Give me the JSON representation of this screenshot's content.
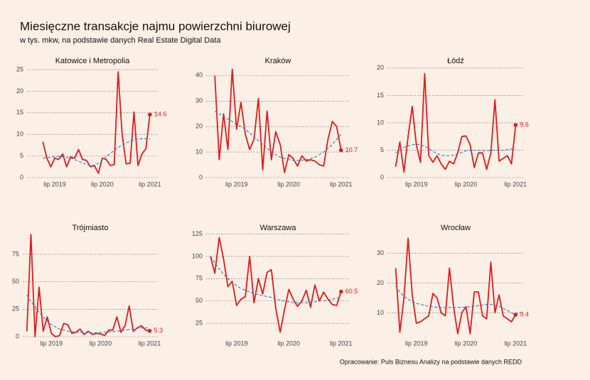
{
  "title": "Miesięczne transakcje najmu powierzchni biurowej",
  "subtitle": "w tys. mkw, na podstawie danych Real Estate Digital Data",
  "source": "Opracowanie: Puls Biznesu Analizy na podstawie danych REDD",
  "chart_data": [
    {
      "type": "line",
      "title": "Katowice i Metropolia",
      "start": "2019-04",
      "xlim": [
        "2018-12",
        "2021-09"
      ],
      "xticks": [
        {
          "value": "2019-07",
          "label": "lip 2019"
        },
        {
          "value": "2020-07",
          "label": "lip 2020"
        },
        {
          "value": "2021-07",
          "label": "lip 2021"
        }
      ],
      "ylim": [
        0,
        26
      ],
      "yticks": [
        0,
        5,
        10,
        15,
        20,
        25
      ],
      "grid": true,
      "series": [
        {
          "color": "#e01b1b",
          "values": [
            8.3,
            4.5,
            2.5,
            4.5,
            4.2,
            5.5,
            2.5,
            4.8,
            4.5,
            6.5,
            4.2,
            4,
            2.5,
            2.8,
            1,
            4.5,
            4.2,
            2.8,
            3,
            24.5,
            10,
            3.2,
            3.3,
            15.2,
            2.8,
            5.5,
            6.7,
            14.6
          ]
        },
        {
          "color": "#2b7bba",
          "dashed": true,
          "values": [
            4.5,
            4.6,
            4.7,
            4.8,
            4.9,
            4.8,
            4.7,
            4.5,
            4.2,
            3.8,
            3.4,
            3,
            2.8,
            2.9,
            3.3,
            4,
            4.8,
            5.6,
            6.3,
            7,
            7.5,
            8,
            8.4,
            8.7,
            8.9,
            9,
            9,
            9
          ]
        }
      ]
    },
    {
      "type": "line",
      "title": "Kraków",
      "start": "2019-02",
      "xlim": [
        "2018-12",
        "2021-09"
      ],
      "xticks": [
        {
          "value": "2019-07",
          "label": "lip 2019"
        },
        {
          "value": "2020-07",
          "label": "lip 2020"
        },
        {
          "value": "2021-07",
          "label": "lip 2021"
        }
      ],
      "ylim": [
        0,
        44
      ],
      "yticks": [
        0,
        10,
        20,
        30,
        40
      ],
      "grid": true,
      "series": [
        {
          "color": "#e01b1b",
          "values": [
            40,
            7,
            25,
            11,
            42.5,
            19,
            29.5,
            17,
            11,
            15,
            31,
            3,
            26,
            7,
            18,
            13,
            2,
            9,
            7.5,
            4.5,
            8.5,
            6.5,
            7,
            6.5,
            5,
            4.5,
            15,
            22,
            20,
            10.7
          ]
        },
        {
          "color": "#2b7bba",
          "dashed": true,
          "values": [
            26,
            25,
            24,
            23,
            22,
            21,
            20,
            19,
            17.5,
            16,
            14.5,
            13,
            11.5,
            10,
            9,
            8,
            7.5,
            7,
            6.8,
            6.7,
            6.8,
            7,
            7.5,
            8,
            9,
            10,
            11.5,
            13,
            15,
            17
          ]
        }
      ]
    },
    {
      "type": "line",
      "title": "Łódź",
      "start": "2019-02",
      "xlim": [
        "2018-12",
        "2021-09"
      ],
      "xticks": [
        {
          "value": "2019-07",
          "label": "lip 2019"
        },
        {
          "value": "2020-07",
          "label": "lip 2020"
        },
        {
          "value": "2021-07",
          "label": "lip 2021"
        }
      ],
      "ylim": [
        0,
        20.5
      ],
      "yticks": [
        0,
        5,
        10,
        15,
        20
      ],
      "grid": true,
      "series": [
        {
          "color": "#e01b1b",
          "values": [
            2,
            6.5,
            1,
            7.5,
            13,
            6,
            2.8,
            19,
            4,
            2.8,
            4,
            2.5,
            1.5,
            3,
            2.5,
            4.5,
            7.5,
            7.6,
            6,
            1.8,
            4.5,
            4.5,
            1.5,
            4.5,
            14.2,
            3,
            3.5,
            4,
            2.5,
            9.6
          ]
        },
        {
          "color": "#2b7bba",
          "dashed": true,
          "values": [
            4.5,
            5,
            5.5,
            5.8,
            6,
            6.1,
            6,
            5.7,
            5.3,
            4.8,
            4.4,
            4.1,
            4,
            4,
            4.1,
            4.3,
            4.6,
            4.9,
            5,
            5,
            5,
            4.9,
            4.9,
            5,
            5,
            5,
            5,
            5.1,
            5.2,
            5.3
          ]
        }
      ]
    },
    {
      "type": "line",
      "title": "Trójmiasto",
      "start": "2019-01",
      "xlim": [
        "2018-12",
        "2021-09"
      ],
      "xticks": [
        {
          "value": "2019-07",
          "label": "lip 2019"
        },
        {
          "value": "2020-07",
          "label": "lip 2020"
        },
        {
          "value": "2021-07",
          "label": "lip 2021"
        }
      ],
      "ylim": [
        0,
        95
      ],
      "yticks": [
        0,
        25,
        50,
        75
      ],
      "grid": true,
      "series": [
        {
          "color": "#e01b1b",
          "values": [
            5,
            93,
            0,
            45,
            5,
            18,
            3,
            0,
            1,
            12,
            11,
            3,
            4,
            7,
            2,
            5,
            2,
            3,
            2.5,
            1,
            6,
            6,
            18,
            4,
            10,
            28,
            5,
            8,
            10,
            6,
            5.3
          ]
        },
        {
          "color": "#2b7bba",
          "dashed": true,
          "values": [
            38,
            32,
            27,
            22,
            18,
            14,
            11,
            9,
            7,
            6,
            5,
            4.5,
            4,
            3.8,
            3.6,
            3.5,
            3.5,
            3.6,
            3.8,
            4,
            4.3,
            4.6,
            5,
            5.5,
            6,
            6.5,
            7,
            7.5,
            8,
            8,
            7.5
          ]
        }
      ]
    },
    {
      "type": "line",
      "title": "Warszawa",
      "start": "2019-01",
      "xlim": [
        "2018-12",
        "2021-09"
      ],
      "xticks": [
        {
          "value": "2019-07",
          "label": "lip 2019"
        },
        {
          "value": "2020-07",
          "label": "lip 2020"
        },
        {
          "value": "2021-07",
          "label": "lip 2021"
        }
      ],
      "ylim": [
        10,
        127
      ],
      "yticks": [
        25,
        50,
        75,
        100,
        125
      ],
      "grid": true,
      "series": [
        {
          "color": "#e01b1b",
          "values": [
            100,
            81,
            121,
            97,
            66,
            72,
            45,
            52,
            55,
            100,
            48,
            75,
            58,
            82,
            85,
            42,
            15,
            40,
            63,
            52,
            44,
            50,
            62,
            43,
            68,
            50,
            60,
            52,
            46,
            45,
            60.5
          ]
        },
        {
          "color": "#2b7bba",
          "dashed": true,
          "values": [
            100,
            93,
            86,
            80,
            75,
            71,
            67,
            64,
            62,
            60,
            58,
            57,
            56,
            55,
            54,
            52,
            51,
            50,
            49,
            48,
            48,
            48,
            48,
            49,
            49,
            50,
            50,
            51,
            52,
            53,
            54
          ]
        }
      ]
    },
    {
      "type": "line",
      "title": "Wrocław",
      "start": "2019-02",
      "xlim": [
        "2018-12",
        "2021-09"
      ],
      "xticks": [
        {
          "value": "2019-07",
          "label": "lip 2019"
        },
        {
          "value": "2020-07",
          "label": "lip 2020"
        },
        {
          "value": "2021-07",
          "label": "lip 2021"
        }
      ],
      "ylim": [
        2,
        37
      ],
      "yticks": [
        10,
        20,
        30
      ],
      "grid": true,
      "series": [
        {
          "color": "#e01b1b",
          "values": [
            25,
            3.5,
            15,
            35,
            16,
            6.5,
            7,
            8,
            9,
            16.5,
            15,
            10,
            9,
            25,
            12,
            3,
            10,
            12,
            3,
            17,
            17,
            9,
            8,
            27,
            10,
            16,
            9,
            8,
            7,
            9.4
          ]
        },
        {
          "color": "#2b7bba",
          "dashed": true,
          "values": [
            19,
            17,
            15.5,
            14.5,
            13.8,
            13.2,
            12.8,
            12.5,
            12.2,
            12,
            11.9,
            11.8,
            11.8,
            11.8,
            11.8,
            11.8,
            11.8,
            11.9,
            12,
            12.2,
            12.4,
            12.6,
            12.8,
            12.8,
            12.6,
            12.2,
            11.5,
            10.8,
            10,
            9.4
          ]
        }
      ]
    }
  ]
}
